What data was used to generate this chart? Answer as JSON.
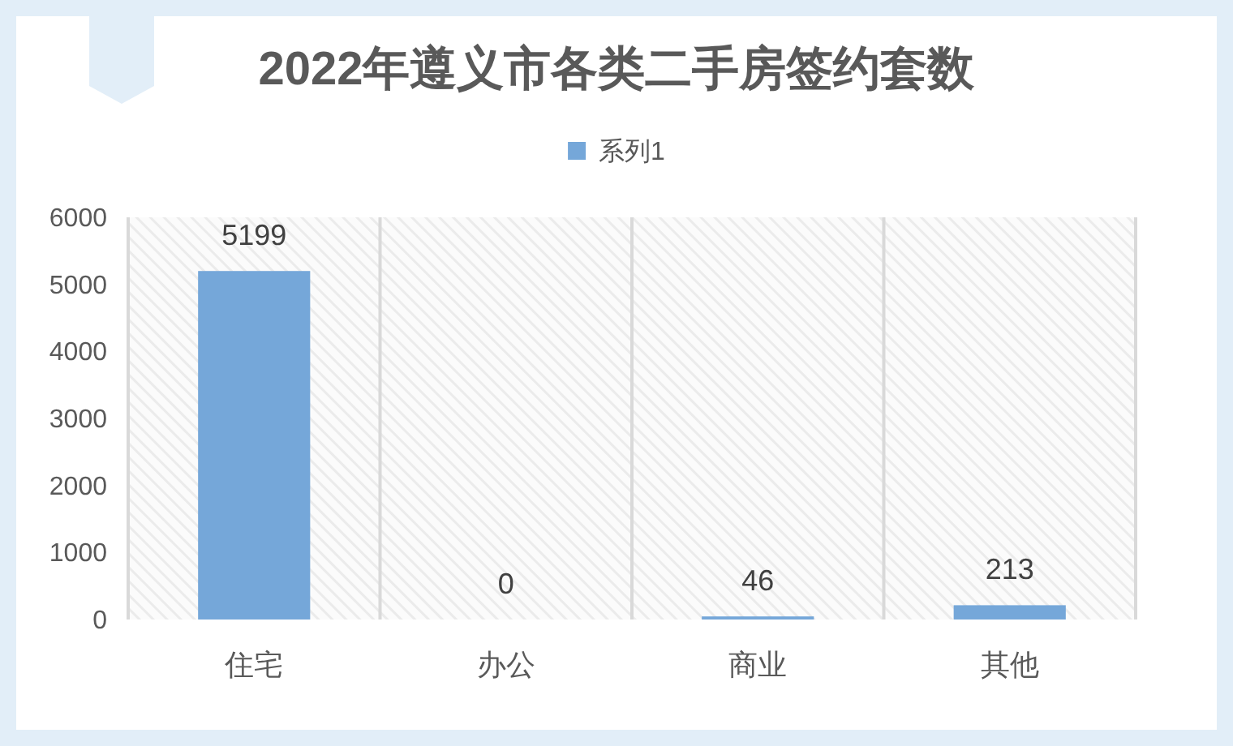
{
  "chart_data": {
    "type": "bar",
    "title": "2022年遵义市各类二手房签约套数",
    "categories": [
      "住宅",
      "办公",
      "商业",
      "其他"
    ],
    "series": [
      {
        "name": "系列1",
        "color": "#75a7d9",
        "values": [
          5199,
          0,
          46,
          213
        ]
      }
    ],
    "ylim": [
      0,
      6000
    ],
    "yticks": [
      0,
      1000,
      2000,
      3000,
      4000,
      5000,
      6000
    ],
    "data_labels": true,
    "legend": "top",
    "grid": "x"
  }
}
